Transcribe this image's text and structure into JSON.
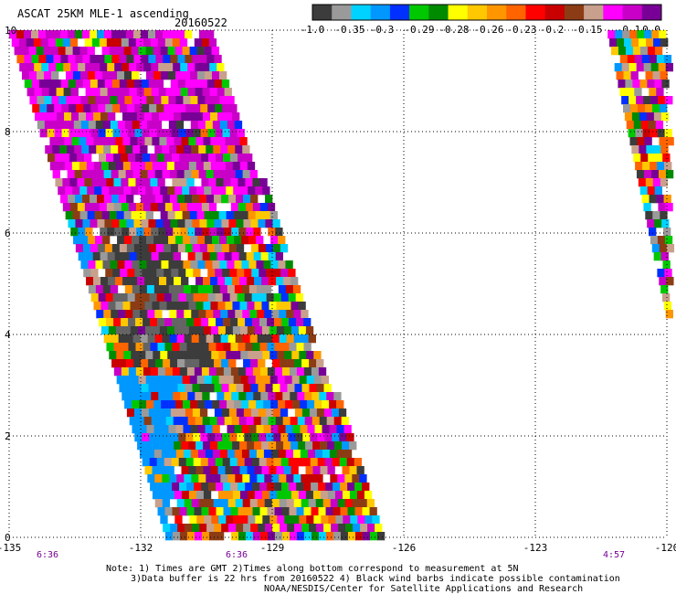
{
  "header": {
    "title": "ASCAT 25KM MLE-1 ascending",
    "date": "20160522"
  },
  "colorbar": {
    "colors": [
      "#3c3c3c",
      "#9a9a9a",
      "#00d2ff",
      "#0098ff",
      "#0030ff",
      "#00c800",
      "#008a00",
      "#ffff00",
      "#ffc800",
      "#ff9600",
      "#ff6400",
      "#ff0000",
      "#c80000",
      "#8c3c14",
      "#c8a08c",
      "#ff00ff",
      "#c800c8",
      "#780096"
    ],
    "tick_labels": [
      "-1.0",
      "-0.35",
      "-0.3",
      "-0.29",
      "-0.28",
      "-0.26",
      "-0.23",
      "-0.2",
      "-0.15",
      "-0.1",
      "0.0"
    ]
  },
  "axes": {
    "x_ticks": [
      "-135",
      "-132",
      "-129",
      "-126",
      "-123",
      "-120"
    ],
    "y_ticks": [
      "0",
      "2",
      "4",
      "6",
      "8",
      "10"
    ],
    "times": [
      "6:36",
      "6:36",
      "4:57"
    ]
  },
  "notes": {
    "line1": "Note: 1) Times are GMT 2)Times along bottom correspond to measurement at 5N",
    "line2": "3)Data buffer is 22 hrs from 20160522 4) Black wind barbs indicate possible contamination",
    "line3": "NOAA/NESDIS/Center for Satellite Applications and Research"
  },
  "chart_data": {
    "type": "heatmap",
    "title": "ASCAT 25KM MLE-1 ascending",
    "subtitle": "20160522",
    "x_range": [
      -135,
      -120
    ],
    "y_range": [
      0,
      10
    ],
    "x_ticks": [
      -135,
      -132,
      -129,
      -126,
      -123,
      -120
    ],
    "y_ticks": [
      0,
      2,
      4,
      6,
      8,
      10
    ],
    "grid": true,
    "colorbar_ticks": [
      -1.0,
      -0.35,
      -0.3,
      -0.29,
      -0.28,
      -0.26,
      -0.23,
      -0.2,
      -0.15,
      -0.1,
      0.0
    ],
    "swaths": [
      {
        "time": "6:36",
        "approx_lon_west_edge": [
          -135.0,
          -131.0
        ],
        "lat_range": [
          0,
          10
        ]
      },
      {
        "time": "4:57",
        "approx_lon_west_edge": [
          -121.3,
          -119.7
        ],
        "lat_range": [
          2.9,
          10
        ]
      }
    ]
  }
}
